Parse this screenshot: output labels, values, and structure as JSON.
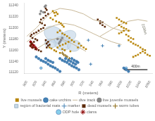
{
  "chart_data": {
    "type": "scatter",
    "xlabel": "R (meters)",
    "ylabel": "Y (meters)",
    "xlim": [
      795,
      1065
    ],
    "ylim": [
      11118,
      11245
    ],
    "xticks": [
      800,
      820,
      840,
      860,
      880,
      900,
      920,
      940,
      960,
      980,
      1000,
      1020,
      1040,
      1060
    ],
    "yticks": [
      11120,
      11140,
      11160,
      11180,
      11200,
      11220,
      11240
    ],
    "grid": false,
    "legend": "bottom",
    "series": [
      {
        "name": "live mussels",
        "type": "scatter",
        "marker": "square",
        "color": "#b8860b",
        "points": [
          [
            855,
            11230
          ],
          [
            858,
            11227
          ],
          [
            862,
            11228
          ],
          [
            865,
            11225
          ],
          [
            860,
            11222
          ],
          [
            850,
            11218
          ],
          [
            855,
            11215
          ],
          [
            862,
            11212
          ],
          [
            868,
            11210
          ],
          [
            872,
            11208
          ],
          [
            875,
            11205
          ],
          [
            878,
            11202
          ],
          [
            870,
            11195
          ],
          [
            865,
            11192
          ],
          [
            875,
            11190
          ],
          [
            880,
            11188
          ],
          [
            885,
            11185
          ],
          [
            890,
            11182
          ],
          [
            895,
            11178
          ],
          [
            900,
            11175
          ],
          [
            888,
            11175
          ],
          [
            882,
            11172
          ],
          [
            876,
            11170
          ],
          [
            870,
            11168
          ],
          [
            865,
            11165
          ],
          [
            875,
            11162
          ],
          [
            880,
            11160
          ],
          [
            892,
            11158
          ],
          [
            870,
            11155
          ],
          [
            862,
            11158
          ],
          [
            858,
            11160
          ],
          [
            852,
            11163
          ],
          [
            848,
            11165
          ],
          [
            910,
            11172
          ],
          [
            915,
            11168
          ],
          [
            920,
            11165
          ],
          [
            925,
            11162
          ],
          [
            908,
            11165
          ],
          [
            990,
            11218
          ],
          [
            995,
            11215
          ],
          [
            1000,
            11212
          ],
          [
            1005,
            11210
          ],
          [
            1010,
            11208
          ],
          [
            995,
            11205
          ],
          [
            1000,
            11202
          ],
          [
            1005,
            11200
          ],
          [
            1010,
            11198
          ],
          [
            1015,
            11195
          ],
          [
            1005,
            11195
          ],
          [
            1000,
            11192
          ],
          [
            995,
            11190
          ],
          [
            1010,
            11188
          ],
          [
            1015,
            11185
          ],
          [
            1020,
            11182
          ],
          [
            1025,
            11180
          ],
          [
            1015,
            11178
          ],
          [
            1020,
            11175
          ],
          [
            1025,
            11172
          ],
          [
            1030,
            11170
          ],
          [
            1035,
            11168
          ],
          [
            1040,
            11165
          ],
          [
            1045,
            11162
          ],
          [
            1050,
            11160
          ],
          [
            1045,
            11158
          ],
          [
            1040,
            11155
          ],
          [
            1035,
            11152
          ],
          [
            1030,
            11150
          ],
          [
            1025,
            11148
          ],
          [
            1050,
            11155
          ],
          [
            1055,
            11152
          ],
          [
            1060,
            11150
          ]
        ]
      },
      {
        "name": "cake urchins",
        "type": "scatter",
        "marker": "circle",
        "color": "#4682b4",
        "edge_color": "#2060a0",
        "points": [
          [
            870,
            11145
          ],
          [
            875,
            11142
          ],
          [
            880,
            11140
          ],
          [
            885,
            11138
          ],
          [
            890,
            11135
          ],
          [
            895,
            11132
          ],
          [
            900,
            11130
          ],
          [
            905,
            11128
          ],
          [
            910,
            11125
          ],
          [
            882,
            11145
          ],
          [
            888,
            11142
          ],
          [
            893,
            11140
          ],
          [
            898,
            11137
          ],
          [
            903,
            11135
          ],
          [
            895,
            11145
          ],
          [
            900,
            11142
          ],
          [
            905,
            11140
          ],
          [
            908,
            11138
          ],
          [
            820,
            11148
          ],
          [
            825,
            11145
          ],
          [
            830,
            11142
          ],
          [
            835,
            11140
          ],
          [
            840,
            11138
          ],
          [
            845,
            11135
          ],
          [
            850,
            11132
          ],
          [
            855,
            11130
          ],
          [
            860,
            11128
          ],
          [
            865,
            11125
          ],
          [
            870,
            11122
          ],
          [
            840,
            11145
          ],
          [
            845,
            11142
          ],
          [
            850,
            11140
          ],
          [
            855,
            11138
          ],
          [
            1005,
            11128
          ],
          [
            1010,
            11125
          ],
          [
            1015,
            11122
          ]
        ]
      },
      {
        "name": "dive track",
        "type": "line",
        "color": "#c8b898",
        "tracks": [
          [
            [
              800,
              11185
            ],
            [
              820,
              11200
            ],
            [
              840,
              11218
            ],
            [
              855,
              11230
            ],
            [
              870,
              11235
            ],
            [
              895,
              11232
            ],
            [
              920,
              11225
            ],
            [
              940,
              11215
            ],
            [
              960,
              11210
            ],
            [
              980,
              11200
            ],
            [
              1000,
              11195
            ],
            [
              1020,
              11195
            ]
          ],
          [
            [
              800,
              11175
            ],
            [
              820,
              11188
            ],
            [
              840,
              11198
            ],
            [
              860,
              11205
            ],
            [
              880,
              11208
            ],
            [
              900,
              11205
            ],
            [
              920,
              11198
            ],
            [
              940,
              11190
            ],
            [
              960,
              11182
            ],
            [
              980,
              11175
            ],
            [
              1000,
              11170
            ]
          ],
          [
            [
              820,
              11162
            ],
            [
              835,
              11170
            ],
            [
              850,
              11178
            ],
            [
              865,
              11182
            ],
            [
              880,
              11178
            ],
            [
              895,
              11172
            ],
            [
              910,
              11165
            ],
            [
              925,
              11158
            ]
          ],
          [
            [
              955,
              11185
            ],
            [
              975,
              11195
            ],
            [
              995,
              11205
            ],
            [
              1015,
              11212
            ],
            [
              1035,
              11215
            ],
            [
              1055,
              11212
            ]
          ]
        ]
      },
      {
        "name": "live juvenile mussels",
        "type": "scatter",
        "marker": "circle",
        "color": "#888888",
        "points": [
          [
            830,
            11230
          ],
          [
            835,
            11228
          ],
          [
            828,
            11225
          ],
          [
            838,
            11238
          ],
          [
            840,
            11240
          ],
          [
            870,
            11175
          ],
          [
            872,
            11178
          ],
          [
            868,
            11172
          ],
          [
            865,
            11180
          ],
          [
            875,
            11182
          ]
        ]
      },
      {
        "name": "region of bacterial mats",
        "type": "ellipse",
        "color": "#c8d8e8",
        "edge_color": "#a0b8c8",
        "ellipses": [
          {
            "cx": 858,
            "cy": 11188,
            "rx": 22,
            "ry": 14,
            "angle": -20
          },
          {
            "cx": 875,
            "cy": 11172,
            "rx": 18,
            "ry": 12,
            "angle": -10
          },
          {
            "cx": 888,
            "cy": 11185,
            "rx": 16,
            "ry": 10,
            "angle": 15
          },
          {
            "cx": 900,
            "cy": 11168,
            "rx": 14,
            "ry": 10,
            "angle": 5
          },
          {
            "cx": 850,
            "cy": 11172,
            "rx": 12,
            "ry": 8,
            "angle": -5
          }
        ]
      },
      {
        "name": "marker",
        "type": "scatter",
        "marker": "plus",
        "color": "#4682b4",
        "points": [
          [
            930,
            11178
          ],
          [
            960,
            11168
          ],
          [
            995,
            11168
          ],
          [
            935,
            11135
          ]
        ]
      },
      {
        "name": "dead mussels",
        "type": "scatter",
        "marker": "square",
        "color": "#5c2a0a",
        "points": [
          [
            840,
            11235
          ],
          [
            842,
            11232
          ],
          [
            838,
            11228
          ],
          [
            845,
            11225
          ],
          [
            840,
            11222
          ],
          [
            835,
            11218
          ],
          [
            830,
            11215
          ],
          [
            828,
            11210
          ],
          [
            832,
            11208
          ],
          [
            838,
            11205
          ],
          [
            835,
            11200
          ],
          [
            830,
            11198
          ],
          [
            825,
            11195
          ],
          [
            820,
            11192
          ],
          [
            815,
            11190
          ],
          [
            810,
            11188
          ],
          [
            808,
            11185
          ],
          [
            812,
            11182
          ],
          [
            818,
            11180
          ],
          [
            822,
            11178
          ],
          [
            815,
            11175
          ],
          [
            810,
            11172
          ],
          [
            808,
            11168
          ],
          [
            812,
            11165
          ],
          [
            818,
            11162
          ],
          [
            825,
            11160
          ],
          [
            830,
            11158
          ],
          [
            840,
            11178
          ],
          [
            845,
            11175
          ],
          [
            842,
            11172
          ],
          [
            848,
            11170
          ],
          [
            845,
            11168
          ],
          [
            842,
            11165
          ],
          [
            950,
            11215
          ],
          [
            955,
            11212
          ],
          [
            960,
            11210
          ],
          [
            955,
            11208
          ],
          [
            960,
            11205
          ],
          [
            965,
            11202
          ]
        ]
      },
      {
        "name": "worm tubes",
        "type": "scatter",
        "marker": "plus",
        "color": "#8b6914",
        "points": [
          [
            875,
            11155
          ],
          [
            878,
            11152
          ],
          [
            882,
            11150
          ],
          [
            885,
            11148
          ],
          [
            890,
            11145
          ]
        ]
      },
      {
        "name": "ODP hole",
        "type": "scatter",
        "marker": "circle",
        "color": "#87ceeb",
        "edge_color": "#4060a0",
        "points": [
          [
            1010,
            11128
          ],
          [
            830,
            11128
          ]
        ]
      },
      {
        "name": "clams",
        "type": "scatter",
        "marker": "star",
        "color": "#8b0000",
        "points": [
          [
            808,
            11175
          ],
          [
            810,
            11172
          ],
          [
            812,
            11170
          ],
          [
            815,
            11168
          ],
          [
            818,
            11165
          ],
          [
            820,
            11162
          ],
          [
            808,
            11168
          ],
          [
            812,
            11165
          ]
        ]
      }
    ],
    "scale_bar": {
      "x": [
        1005,
        1055
      ],
      "y": [
        11125,
        11125
      ],
      "color": "#444444"
    },
    "annotations": [
      {
        "text": "400m",
        "x": 1030,
        "y": 11127,
        "color": "#333333"
      },
      {
        "text": "2150m",
        "x": 1048,
        "y": 11198,
        "color": "#666655"
      }
    ]
  }
}
